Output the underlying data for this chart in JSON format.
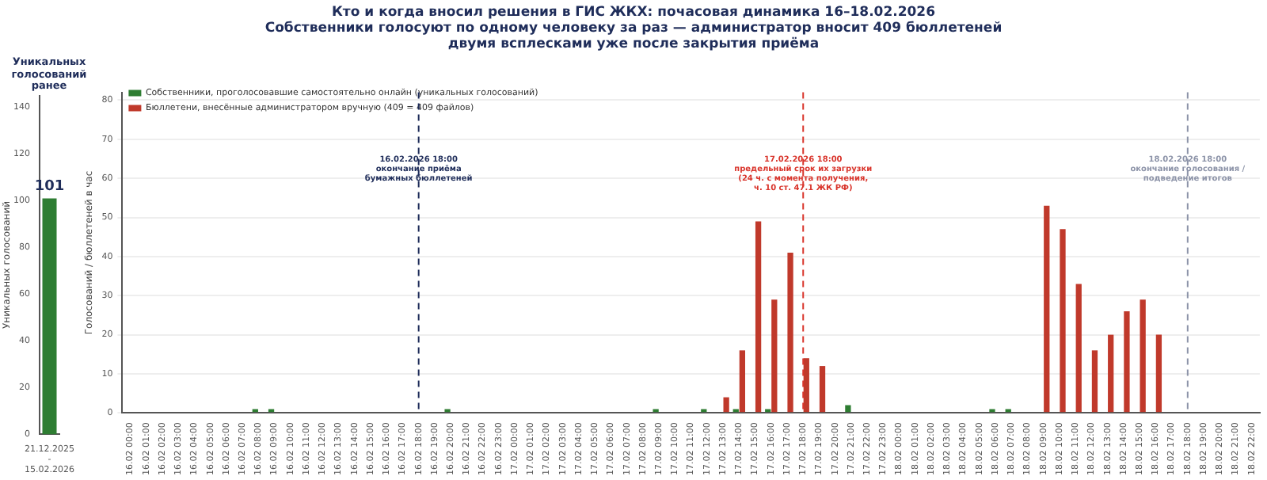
{
  "chart_data": [
    {
      "type": "bar",
      "title": "Уникальных голосований ранее",
      "ylabel": "Уникальных голосований",
      "categories": [
        "21.12.2025\n-\n15.02.2026"
      ],
      "values": [
        101
      ],
      "color": "#2e7d32",
      "ylim": [
        0,
        145
      ],
      "yticks": [
        0,
        20,
        40,
        60,
        80,
        100,
        120,
        140
      ],
      "data_labels": true
    },
    {
      "type": "bar",
      "title": "Кто и когда вносил решения в ГИС ЖКХ: почасовая динамика 16–18.02.2026",
      "subtitle": "Собственники голосуют по одному человеку за раз — администратор вносит 409 бюллетеней\nдвумя всплесками уже после закрытия приёма",
      "ylabel": "Голосований / бюллетеней в час",
      "categories": [
        "16.02 00:00",
        "16.02 01:00",
        "16.02 02:00",
        "16.02 03:00",
        "16.02 04:00",
        "16.02 05:00",
        "16.02 06:00",
        "16.02 07:00",
        "16.02 08:00",
        "16.02 09:00",
        "16.02 10:00",
        "16.02 11:00",
        "16.02 12:00",
        "16.02 13:00",
        "16.02 14:00",
        "16.02 15:00",
        "16.02 16:00",
        "16.02 17:00",
        "16.02 18:00",
        "16.02 19:00",
        "16.02 20:00",
        "16.02 21:00",
        "16.02 22:00",
        "16.02 23:00",
        "17.02 00:00",
        "17.02 01:00",
        "17.02 02:00",
        "17.02 03:00",
        "17.02 04:00",
        "17.02 05:00",
        "17.02 06:00",
        "17.02 07:00",
        "17.02 08:00",
        "17.02 09:00",
        "17.02 10:00",
        "17.02 11:00",
        "17.02 12:00",
        "17.02 13:00",
        "17.02 14:00",
        "17.02 15:00",
        "17.02 16:00",
        "17.02 17:00",
        "17.02 18:00",
        "17.02 19:00",
        "17.02 20:00",
        "17.02 21:00",
        "17.02 22:00",
        "17.02 23:00",
        "18.02 00:00",
        "18.02 01:00",
        "18.02 02:00",
        "18.02 03:00",
        "18.02 04:00",
        "18.02 05:00",
        "18.02 06:00",
        "18.02 07:00",
        "18.02 08:00",
        "18.02 09:00",
        "18.02 10:00",
        "18.02 11:00",
        "18.02 12:00",
        "18.02 13:00",
        "18.02 14:00",
        "18.02 15:00",
        "18.02 16:00",
        "18.02 17:00",
        "18.02 18:00",
        "18.02 19:00",
        "18.02 20:00",
        "18.02 21:00",
        "18.02 22:00"
      ],
      "series": [
        {
          "name": "Собственники, проголосовавшие самостоятельно онлайн (уникальных голосований)",
          "color": "#2e7d32",
          "values": [
            0,
            0,
            0,
            0,
            0,
            0,
            0,
            0,
            1,
            1,
            0,
            0,
            0,
            0,
            0,
            0,
            0,
            0,
            0,
            0,
            1,
            0,
            0,
            0,
            0,
            0,
            0,
            0,
            0,
            0,
            0,
            0,
            0,
            1,
            0,
            0,
            1,
            0,
            1,
            0,
            1,
            0,
            0,
            0,
            0,
            2,
            0,
            0,
            0,
            0,
            0,
            0,
            0,
            0,
            1,
            1,
            0,
            0,
            0,
            0,
            0,
            0,
            0,
            0,
            0,
            0,
            0,
            0,
            0,
            0,
            0
          ]
        },
        {
          "name": "Бюллетени, внесённые администратором вручную (409 = 409 файлов)",
          "color": "#c0392b",
          "values": [
            0,
            0,
            0,
            0,
            0,
            0,
            0,
            0,
            0,
            0,
            0,
            0,
            0,
            0,
            0,
            0,
            0,
            0,
            0,
            0,
            0,
            0,
            0,
            0,
            0,
            0,
            0,
            0,
            0,
            0,
            0,
            0,
            0,
            0,
            0,
            0,
            0,
            4,
            16,
            49,
            29,
            41,
            14,
            12,
            0,
            0,
            0,
            0,
            0,
            0,
            0,
            0,
            0,
            0,
            0,
            0,
            0,
            53,
            47,
            33,
            16,
            20,
            26,
            29,
            20,
            0,
            0,
            0,
            0,
            0,
            0
          ]
        }
      ],
      "ylim": [
        0,
        82
      ],
      "yticks": [
        0,
        10,
        20,
        30,
        40,
        50,
        60,
        70,
        80
      ],
      "grid": "y",
      "legend": "top left",
      "ref_lines": [
        {
          "axis": "x",
          "value": "16.02 18:00",
          "label": "16.02.2026 18:00\nокончание приёма\nбумажных бюллетеней",
          "color": "#1f2d5a",
          "line_style": "dashed"
        },
        {
          "axis": "x",
          "value": "17.02 18:00",
          "label": "17.02.2026 18:00\nпредельный срок их загрузки\n(24 ч. с момента получения,\nч. 10 ст. 47.1 ЖК РФ)",
          "color": "#d9342b",
          "line_style": "dashed"
        },
        {
          "axis": "x",
          "value": "18.02 18:00",
          "label": "18.02.2026 18:00\nокончание голосования /\nподведение итогов",
          "color": "#8c93a8",
          "line_style": "dashed"
        }
      ]
    }
  ]
}
